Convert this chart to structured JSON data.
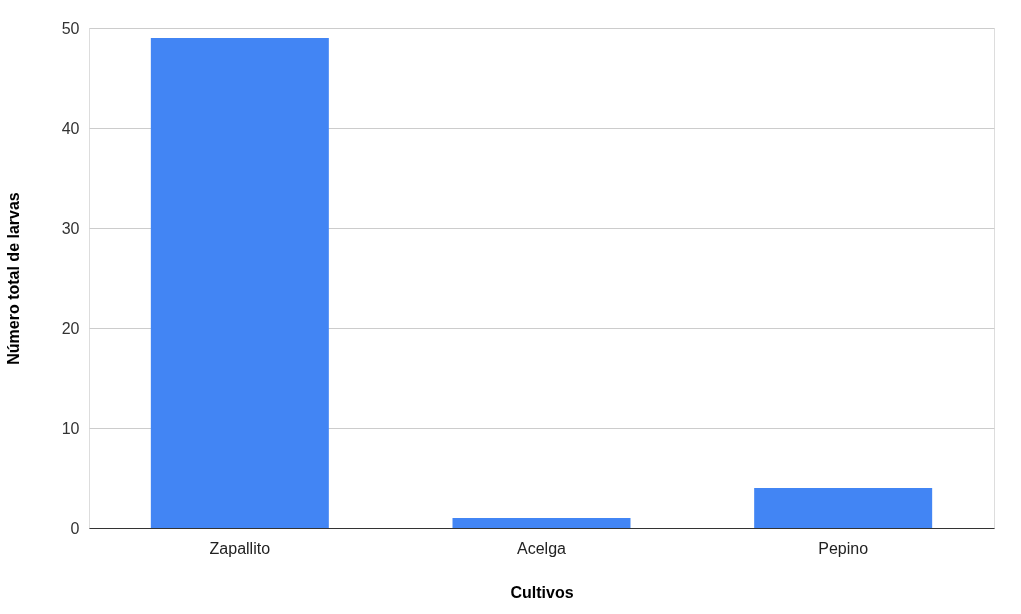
{
  "chart_data": {
    "type": "bar",
    "xlabel": "Cultivos",
    "ylabel": "Número total de larvas",
    "categories": [
      "Zapallito",
      "Acelga",
      "Pepino"
    ],
    "values": [
      49,
      1,
      4
    ],
    "color": "#4285f4",
    "ylim": [
      0,
      50
    ],
    "yticks": [
      0,
      10,
      20,
      30,
      40,
      50
    ],
    "grid": "y"
  }
}
